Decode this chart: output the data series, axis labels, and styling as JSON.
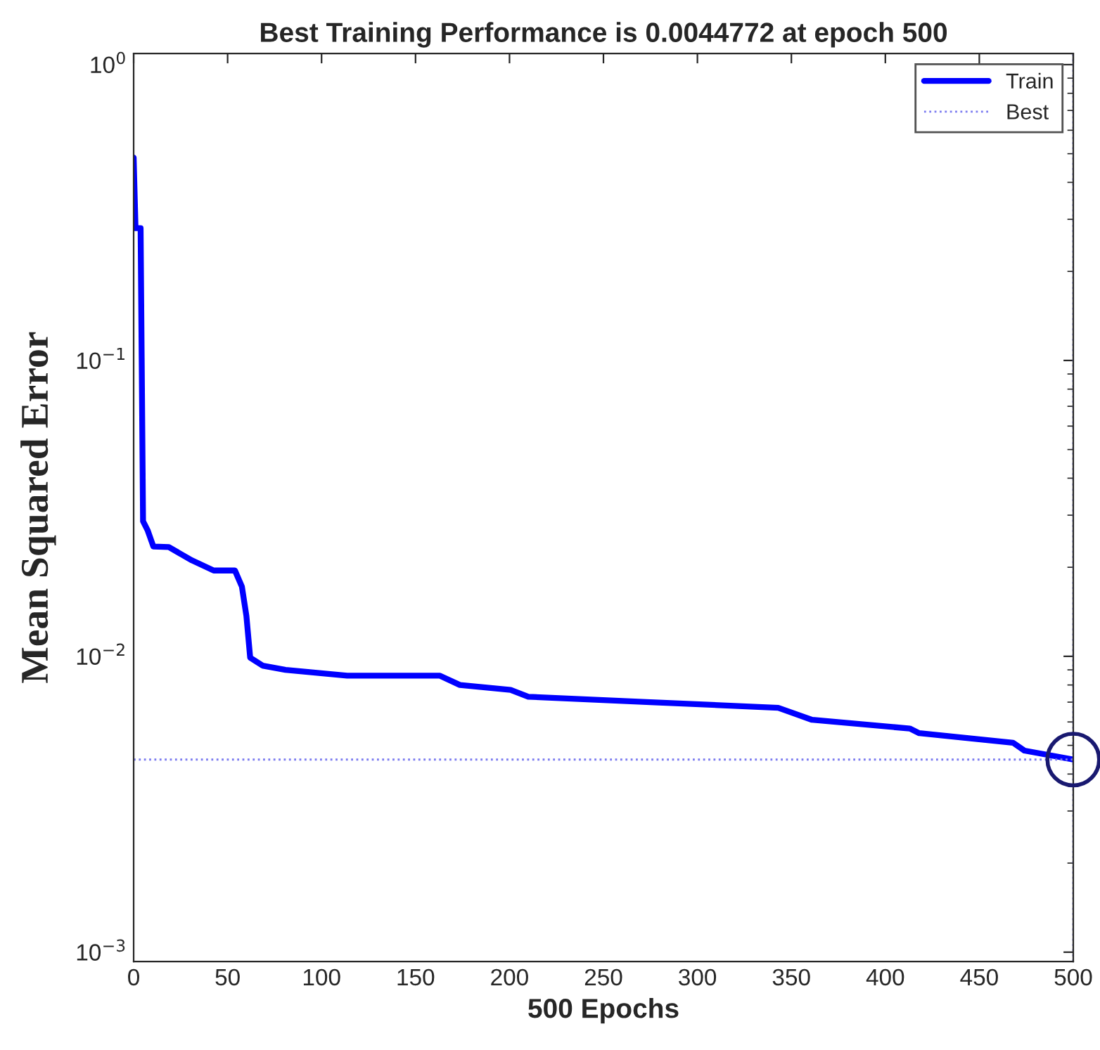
{
  "chart_data": {
    "type": "line",
    "title": "Best Training Performance is 0.0044772 at epoch 500",
    "xlabel": "500 Epochs",
    "ylabel": "Mean Squared Error",
    "series": [
      {
        "name": "Train",
        "color": "#0000ff",
        "x": [
          0,
          1,
          3.7,
          5,
          7.5,
          10.5,
          18.7,
          31,
          42.6,
          53.9,
          57.6,
          60,
          62,
          68.6,
          80.8,
          113.6,
          163,
          173.6,
          200.6,
          210,
          275,
          343,
          361,
          413,
          418,
          468,
          474,
          500
        ],
        "values": [
          0.485,
          0.28,
          0.28,
          0.0286,
          0.0266,
          0.0235,
          0.0234,
          0.0211,
          0.0195,
          0.0195,
          0.0172,
          0.0137,
          0.0099,
          0.0093,
          0.009,
          0.0086,
          0.0086,
          0.008,
          0.0077,
          0.0073,
          0.007,
          0.0067,
          0.0061,
          0.0057,
          0.0055,
          0.0051,
          0.0048,
          0.0044772
        ]
      },
      {
        "type": "scatter",
        "color": "#191970",
        "marker": "circle",
        "x": [
          500
        ],
        "values": [
          0.0044772
        ]
      }
    ],
    "ref_lines": [
      {
        "axis": "y",
        "value": 0.0044772,
        "label": "Best",
        "color": "#7b7bf0",
        "line_style": "dotted"
      },
      {
        "axis": "x",
        "value": 500,
        "color": "#7b7bf0",
        "line_style": "dotted"
      }
    ],
    "log": "y",
    "xlim": [
      0,
      500
    ],
    "ylim": [
      0.00093,
      1.09
    ],
    "xticks": [
      0,
      50,
      100,
      150,
      200,
      250,
      300,
      350,
      400,
      450,
      500
    ],
    "yticks": [
      {
        "value": 0.001,
        "label": "10$^{−3}$"
      },
      {
        "value": 0.01,
        "label": "10$^{−2}$"
      },
      {
        "value": 0.1,
        "label": "10$^{−1}$"
      },
      {
        "value": 1,
        "label": "10$^{0}$"
      }
    ],
    "grid": false,
    "legend": "top right"
  }
}
